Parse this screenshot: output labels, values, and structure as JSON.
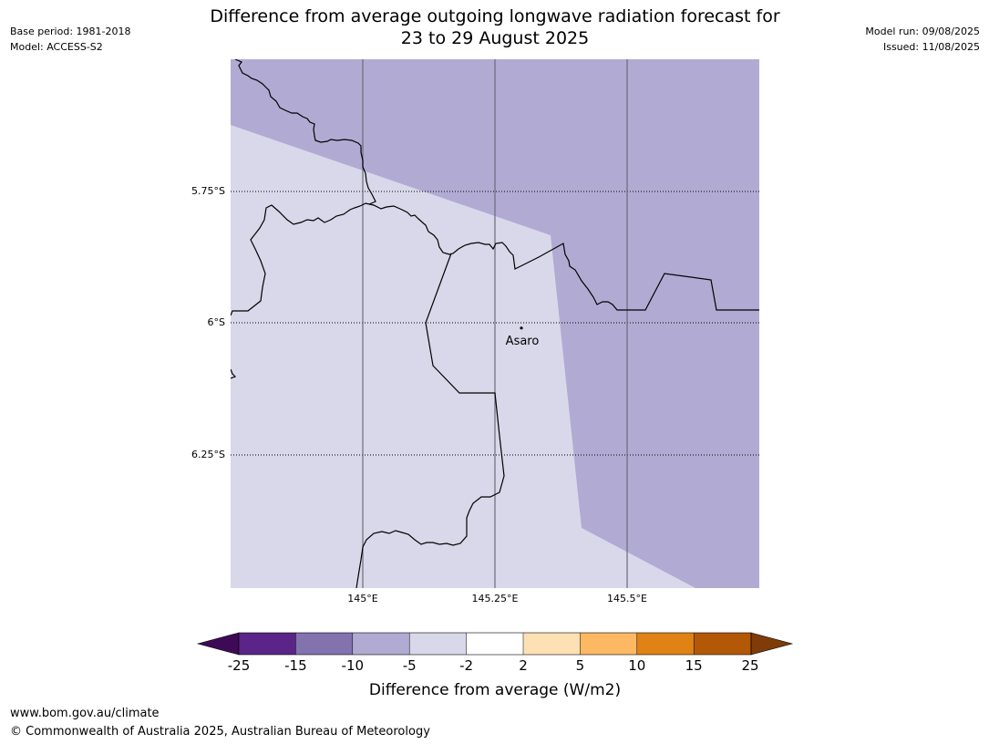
{
  "header": {
    "title_line1": "Difference from average outgoing longwave radiation forecast for",
    "title_line2": "23 to 29 August 2025",
    "base_period": "Base period: 1981-2018",
    "model": "Model: ACCESS-S2",
    "model_run": "Model run: 09/08/2025",
    "issued": "Issued: 11/08/2025"
  },
  "map": {
    "latitude_labels": [
      "5.75°S",
      "6°S",
      "6.25°S"
    ],
    "longitude_labels": [
      "145°E",
      "145.25°E",
      "145.5°E"
    ],
    "place": {
      "name": "Asaro",
      "lon": 145.3,
      "lat": -6.01
    },
    "colors": {
      "band_minus10_to_minus5": "#b1abd3",
      "band_minus5_to_minus2": "#d8d8ea",
      "coastline": "#000000",
      "meridian": "#6b6b7a"
    }
  },
  "colorbar": {
    "label": "Difference from average (W/m2)",
    "ticks": [
      "-25",
      "-15",
      "-10",
      "-5",
      "-2",
      "2",
      "5",
      "10",
      "15",
      "25"
    ],
    "colors": [
      "#3f0a55",
      "#5a2489",
      "#8272ae",
      "#b1abd3",
      "#d8d8ea",
      "#ffffff",
      "#fee0b5",
      "#fdb863",
      "#e08214",
      "#b35806",
      "#7f3b08"
    ]
  },
  "footer": {
    "url": "www.bom.gov.au/climate",
    "copyright": "© Commonwealth of Australia 2025, Australian Bureau of Meteorology"
  }
}
